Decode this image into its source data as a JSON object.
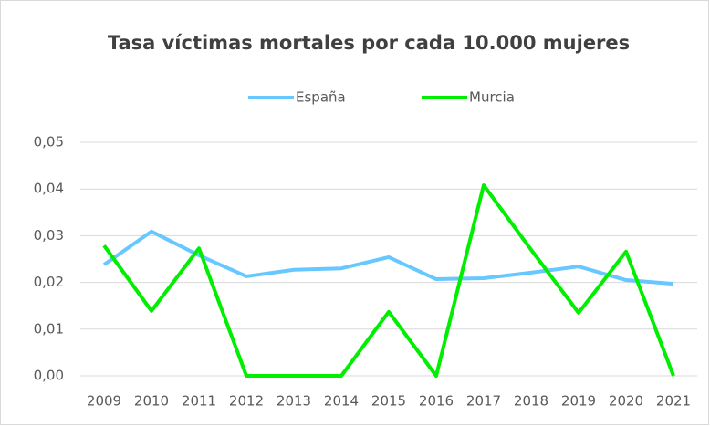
{
  "chart_data": {
    "type": "line",
    "title": "Tasa víctimas mortales por cada 10.000 mujeres",
    "categories": [
      "2009",
      "2010",
      "2011",
      "2012",
      "2013",
      "2014",
      "2015",
      "2016",
      "2017",
      "2018",
      "2019",
      "2020",
      "2021"
    ],
    "series": [
      {
        "name": "España",
        "color": "#66c8ff",
        "values": [
          0.0238,
          0.0309,
          0.0258,
          0.0213,
          0.0227,
          0.023,
          0.0254,
          0.0207,
          0.0209,
          0.0221,
          0.0234,
          0.0205,
          0.0197
        ]
      },
      {
        "name": "Murcia",
        "color": "#00ee00",
        "values": [
          0.0279,
          0.0139,
          0.0273,
          0,
          0,
          0,
          0.0137,
          0,
          0.0408,
          0.027,
          0.0135,
          0.0266,
          0
        ]
      }
    ],
    "ylim": [
      0,
      0.05
    ],
    "yticks": [
      {
        "value": 0,
        "label": "0,00"
      },
      {
        "value": 0.01,
        "label": "0,01"
      },
      {
        "value": 0.02,
        "label": "0,02"
      },
      {
        "value": 0.03,
        "label": "0,03"
      },
      {
        "value": 0.04,
        "label": "0,04"
      },
      {
        "value": 0.05,
        "label": "0,05"
      }
    ],
    "grid": true,
    "legend": "top"
  }
}
